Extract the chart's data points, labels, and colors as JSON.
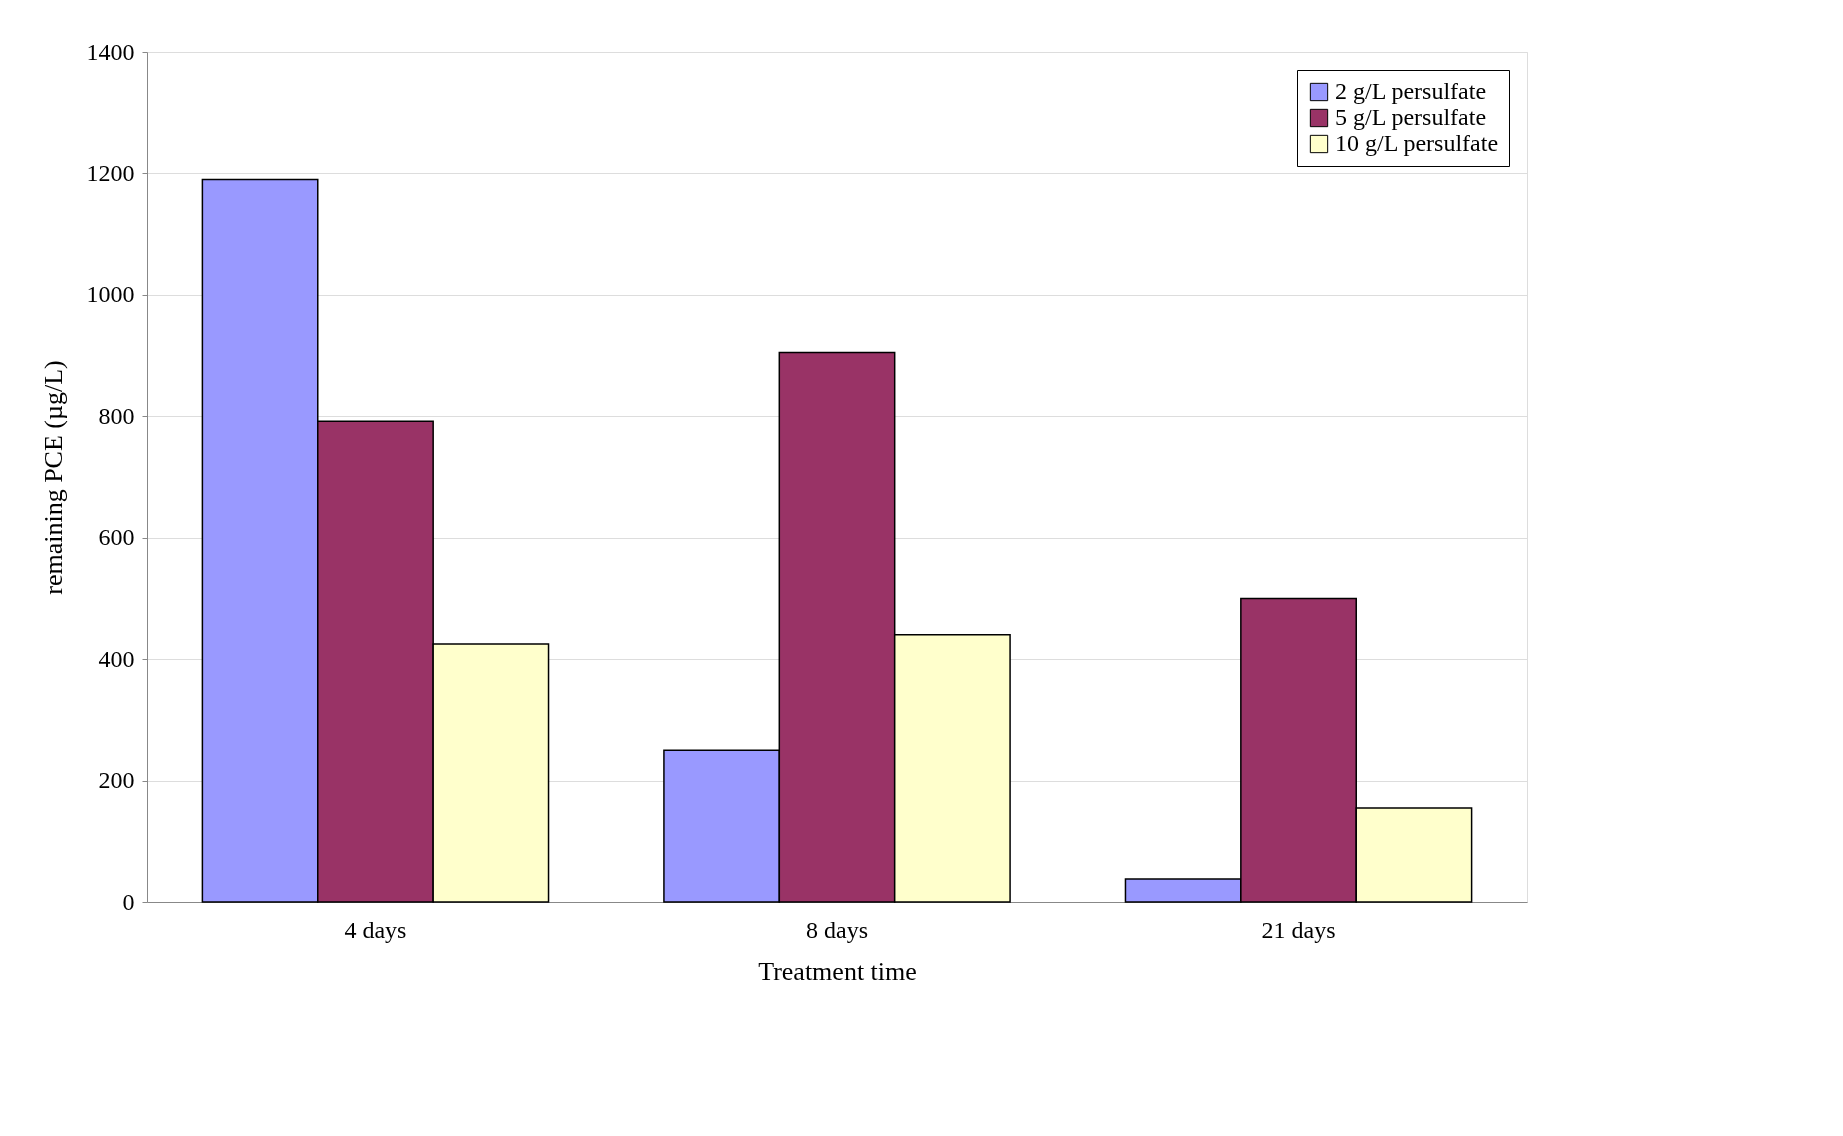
{
  "chart_data": {
    "type": "bar",
    "xlabel": "Treatment time",
    "ylabel": "remaining PCE (µg/L)",
    "categories": [
      "4 days",
      "8 days",
      "21 days"
    ],
    "series": [
      {
        "name": "2 g/L persulfate",
        "color": "#9999ff",
        "values": [
          1190,
          250,
          38
        ]
      },
      {
        "name": "5 g/L persulfate",
        "color": "#993366",
        "values": [
          792,
          905,
          500
        ]
      },
      {
        "name": "10 g/L persulfate",
        "color": "#ffffcc",
        "values": [
          425,
          440,
          155
        ]
      }
    ],
    "ylim": [
      0,
      1400
    ],
    "yticks": [
      0,
      200,
      400,
      600,
      800,
      1000,
      1200,
      1400
    ],
    "grid": "y",
    "legend": "top right"
  }
}
